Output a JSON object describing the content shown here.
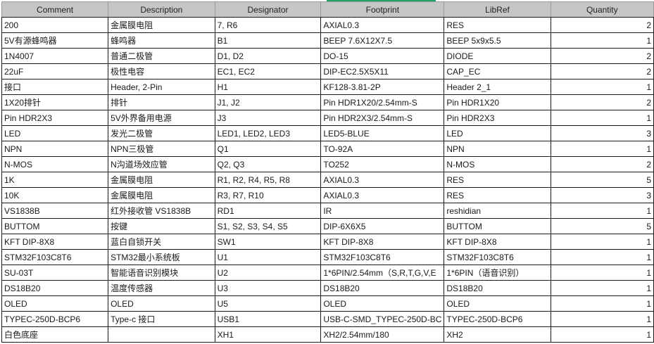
{
  "selected_column": "Footprint",
  "accent_color": "#21a366",
  "headers": [
    "Comment",
    "Description",
    "Designator",
    "Footprint",
    "LibRef",
    "Quantity"
  ],
  "rows": [
    [
      "200",
      "金属膜电阻",
      "7, R6",
      "AXIAL0.3",
      "RES",
      "2"
    ],
    [
      "5V有源蜂鸣器",
      "蜂鸣器",
      "B1",
      "BEEP 7.6X12X7.5",
      "BEEP 5x9x5.5",
      "1"
    ],
    [
      "1N4007",
      "普通二极管",
      "D1, D2",
      "DO-15",
      "DIODE",
      "2"
    ],
    [
      "22uF",
      "极性电容",
      "EC1, EC2",
      "DIP-EC2.5X5X11",
      "CAP_EC",
      "2"
    ],
    [
      "接口",
      "Header, 2-Pin",
      "H1",
      "KF128-3.81-2P",
      "Header 2_1",
      "1"
    ],
    [
      "1X20排针",
      "排针",
      "J1, J2",
      "Pin HDR1X20/2.54mm-S",
      "Pin HDR1X20",
      "2"
    ],
    [
      "Pin HDR2X3",
      "5V外界备用电源",
      "J3",
      "Pin HDR2X3/2.54mm-S",
      "Pin HDR2X3",
      "1"
    ],
    [
      "LED",
      "发光二极管",
      "LED1, LED2, LED3",
      "LED5-BLUE",
      "LED",
      "3"
    ],
    [
      "NPN",
      "NPN三极管",
      "Q1",
      "TO-92A",
      "NPN",
      "1"
    ],
    [
      "N-MOS",
      "N沟道场效应管",
      "Q2, Q3",
      "TO252",
      "N-MOS",
      "2"
    ],
    [
      "1K",
      "金属膜电阻",
      "R1, R2, R4, R5, R8",
      "AXIAL0.3",
      "RES",
      "5"
    ],
    [
      "10K",
      "金属膜电阻",
      "R3, R7, R10",
      "AXIAL0.3",
      "RES",
      "3"
    ],
    [
      "VS1838B",
      "红外接收管 VS1838B",
      "RD1",
      "IR",
      "reshidian",
      "1"
    ],
    [
      "BUTTOM",
      "按键",
      "S1, S2, S3, S4, S5",
      "DIP-6X6X5",
      "BUTTOM",
      "5"
    ],
    [
      "KFT DIP-8X8",
      "蓝白自锁开关",
      "SW1",
      "KFT DIP-8X8",
      "KFT DIP-8X8",
      "1"
    ],
    [
      "STM32F103C8T6",
      "STM32最小系统板",
      "U1",
      "STM32F103C8T6",
      "STM32F103C8T6",
      "1"
    ],
    [
      "SU-03T",
      "智能语音识别模块",
      "U2",
      "1*6PIN/2.54mm（S,R,T,G,V,E",
      "1*6PIN（语音识别）",
      "1"
    ],
    [
      "DS18B20",
      "温度传感器",
      "U3",
      "DS18B20",
      "DS18B20",
      "1"
    ],
    [
      "OLED",
      "OLED",
      "U5",
      "OLED",
      "OLED",
      "1"
    ],
    [
      "TYPEC-250D-BCP6",
      "Type-c 接口",
      "USB1",
      "USB-C-SMD_TYPEC-250D-BC",
      "TYPEC-250D-BCP6",
      "1"
    ],
    [
      "白色底座",
      "",
      "XH1",
      "XH2/2.54mm/180",
      "XH2",
      "1"
    ]
  ]
}
